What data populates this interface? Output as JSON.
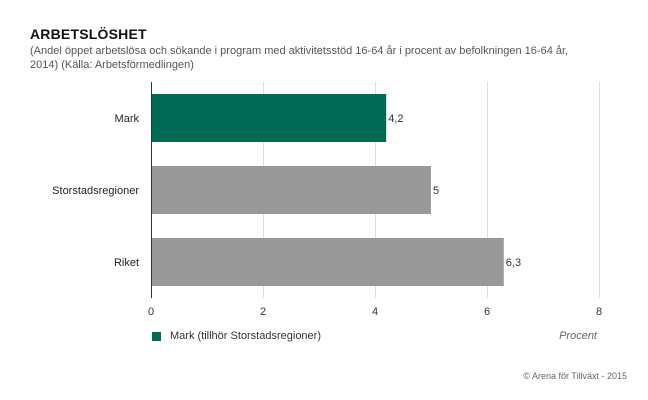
{
  "colors": {
    "highlight": "#006a55",
    "other": "#999999",
    "grid": "#dddddd",
    "axis": "#333333"
  },
  "chart_data": {
    "type": "bar",
    "orientation": "horizontal",
    "title": "ARBETSLÖSHET",
    "subtitle": "(Andel öppet arbetslösa och sökande i program med aktivitetsstöd 16-64 år i procent av befolkningen 16-64 år, 2014) (Källa: Arbetsförmedlingen)",
    "categories": [
      "Mark",
      "Storstadsregioner",
      "Riket"
    ],
    "values": [
      4.2,
      5,
      6.3
    ],
    "value_labels": [
      "4,2",
      "5",
      "6,3"
    ],
    "highlight_index": 0,
    "xlim": [
      0,
      8
    ],
    "xticks": [
      0,
      2,
      4,
      6,
      8
    ],
    "xlabel": "Procent",
    "grid": true,
    "legend": [
      {
        "label": "Mark (tillhör Storstadsregioner)",
        "color": "#006a55"
      }
    ],
    "legend_position": "bottom-left"
  },
  "footer": {
    "credit": "© Arena för Tillväxt - 2015"
  }
}
